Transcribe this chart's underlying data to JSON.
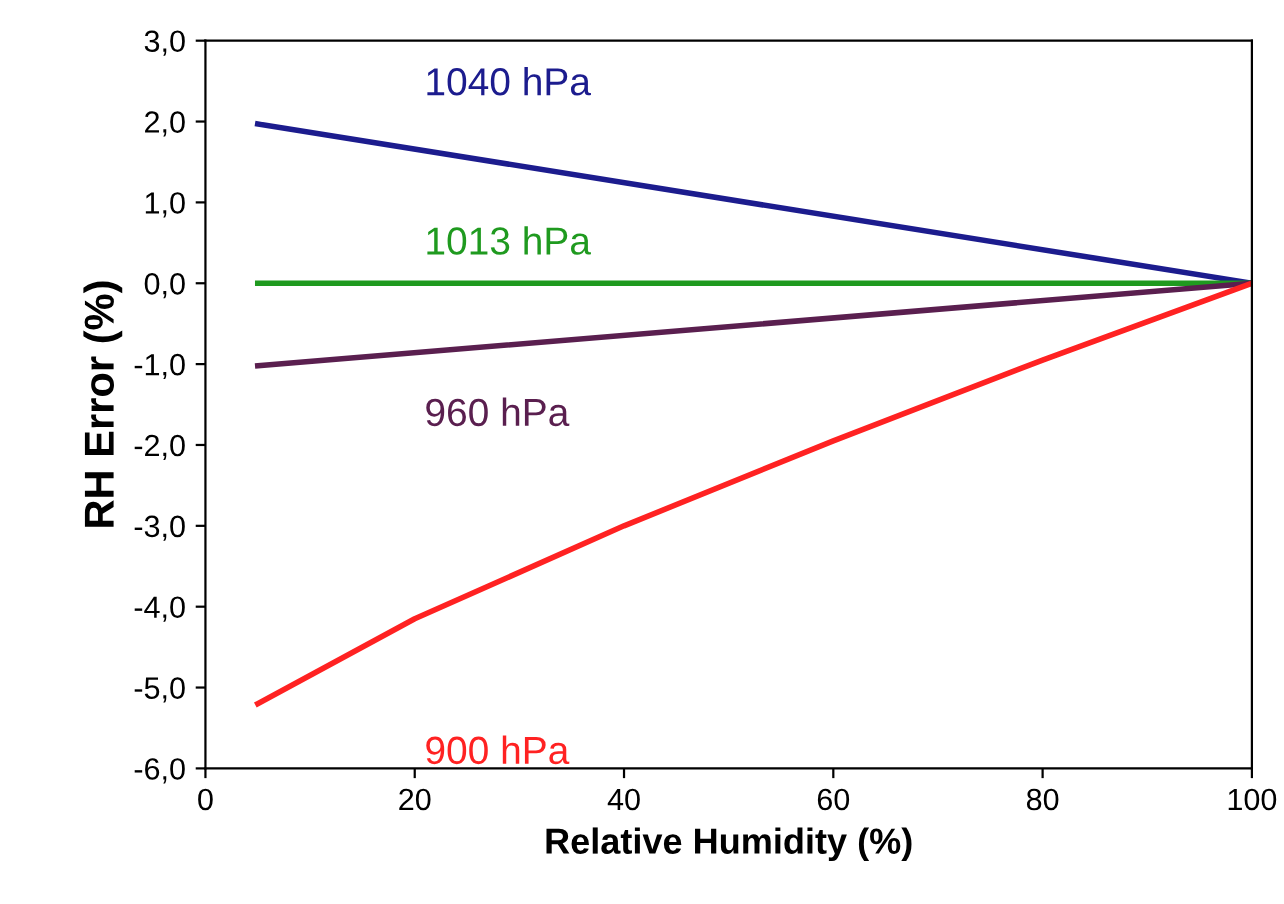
{
  "chart_data": {
    "type": "line",
    "xlabel": "Relative Humidity (%)",
    "ylabel": "RH Error (%)",
    "xlim": [
      0,
      100
    ],
    "ylim": [
      -6,
      3
    ],
    "xticks": [
      0,
      20,
      40,
      60,
      80,
      100
    ],
    "yticks": [
      {
        "value": 3,
        "label": "3,0"
      },
      {
        "value": 2,
        "label": "2,0"
      },
      {
        "value": 1,
        "label": "1,0"
      },
      {
        "value": 0,
        "label": "0,0"
      },
      {
        "value": -1,
        "label": "-1,0"
      },
      {
        "value": -2,
        "label": "-2,0"
      },
      {
        "value": -3,
        "label": "-3,0"
      },
      {
        "value": -4,
        "label": "-4,0"
      },
      {
        "value": -5,
        "label": "-5,0"
      },
      {
        "value": -6,
        "label": "-6,0"
      }
    ],
    "grid": false,
    "legend": false,
    "marker": "none",
    "line_style": "solid",
    "series": [
      {
        "name": "1040 hPa",
        "color": "#1c1c8e",
        "x": [
          5,
          100
        ],
        "values": [
          1.97,
          0
        ]
      },
      {
        "name": "1013 hPa",
        "color": "#1f9a1f",
        "x": [
          5,
          100
        ],
        "values": [
          0,
          0
        ]
      },
      {
        "name": "960 hPa",
        "color": "#5a1f4f",
        "x": [
          5,
          100
        ],
        "values": [
          -1.02,
          0
        ]
      },
      {
        "name": "900 hPa",
        "color": "#ff2222",
        "x": [
          5,
          20,
          40,
          60,
          80,
          100
        ],
        "values": [
          -5.2,
          -4.15,
          -3.0,
          -1.95,
          -0.95,
          0
        ]
      }
    ]
  }
}
